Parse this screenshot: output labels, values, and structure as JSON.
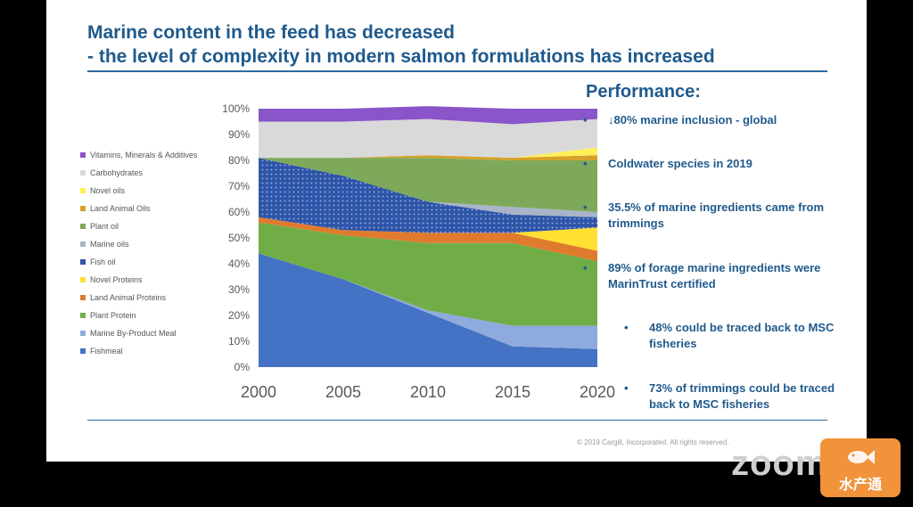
{
  "slide": {
    "title_line1": "Marine content in the feed has decreased",
    "title_line2": "- the level of complexity in modern salmon formulations has increased"
  },
  "performance": {
    "heading": "Performance:",
    "bullets": [
      "↓80% marine inclusion - global",
      "Coldwater species in 2019",
      "35.5% of marine ingredients came from trimmings",
      "89% of forage marine ingredients were MarinTrust certified"
    ],
    "sub_bullets": [
      "48% could be traced back to MSC fisheries",
      "73% of trimmings could be traced back to MSC fisheries"
    ],
    "bullet_symbol": "•"
  },
  "footer": {
    "copyright": "© 2019 Cargill, Incorporated. All rights reserved."
  },
  "overlay": {
    "zoom_watermark": "zoom",
    "logo_text": "水产通"
  },
  "chart_data": {
    "type": "area",
    "stacked": true,
    "x": [
      2000,
      2005,
      2010,
      2015,
      2020
    ],
    "ylim": [
      0,
      100
    ],
    "y_ticks": [
      "0%",
      "10%",
      "20%",
      "30%",
      "40%",
      "50%",
      "60%",
      "70%",
      "80%",
      "90%",
      "100%"
    ],
    "x_ticks": [
      "2000",
      "2005",
      "2010",
      "2015",
      "2020"
    ],
    "legend_position": "left",
    "series": [
      {
        "name": "Fishmeal",
        "values": [
          44,
          34,
          21,
          8,
          7
        ],
        "color": "#4472c4"
      },
      {
        "name": "Marine By-Product Meal",
        "values": [
          0,
          0,
          1,
          8,
          9
        ],
        "color": "#8faadc"
      },
      {
        "name": "Plant Protein",
        "values": [
          12,
          17,
          26,
          32,
          25
        ],
        "color": "#70ad47"
      },
      {
        "name": "Land Animal Proteins",
        "values": [
          2,
          2,
          4,
          4,
          4
        ],
        "color": "#e07b2e"
      },
      {
        "name": "Novel Proteins",
        "values": [
          0,
          0,
          0,
          0,
          9
        ],
        "color": "#ffe033"
      },
      {
        "name": "Fish  oil",
        "values": [
          23,
          21,
          12,
          7,
          4
        ],
        "color": "#2f55a8"
      },
      {
        "name": "Marine  oils",
        "values": [
          0,
          0,
          0,
          3,
          2
        ],
        "color": "#a9b4c8"
      },
      {
        "name": "Plant oil",
        "values": [
          0,
          7,
          17,
          18,
          20
        ],
        "color": "#7ea95a"
      },
      {
        "name": "Land Animal Oils",
        "values": [
          0,
          0,
          1,
          1,
          2
        ],
        "color": "#d5a12a"
      },
      {
        "name": "Novel oils",
        "values": [
          0,
          0,
          0,
          0,
          3
        ],
        "color": "#fff05a"
      },
      {
        "name": "Carbohydrates",
        "values": [
          14,
          14,
          14,
          13,
          11
        ],
        "color": "#d9d9d9"
      },
      {
        "name": "Vitamins, Minerals & Additives",
        "values": [
          5,
          5,
          5,
          6,
          4
        ],
        "color": "#8a55c8"
      }
    ]
  }
}
